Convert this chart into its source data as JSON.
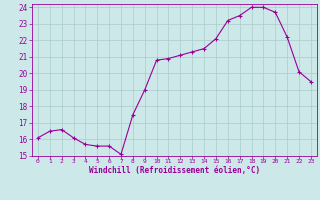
{
  "x": [
    0,
    1,
    2,
    3,
    4,
    5,
    6,
    7,
    8,
    9,
    10,
    11,
    12,
    13,
    14,
    15,
    16,
    17,
    18,
    19,
    20,
    21,
    22,
    23
  ],
  "y": [
    16.1,
    16.5,
    16.6,
    16.1,
    15.7,
    15.6,
    15.6,
    15.1,
    17.5,
    19.0,
    20.8,
    20.9,
    21.1,
    21.3,
    21.5,
    22.1,
    23.2,
    23.5,
    24.0,
    24.0,
    23.7,
    22.2,
    20.1,
    19.5
  ],
  "xlim": [
    -0.5,
    23.5
  ],
  "ylim": [
    15.0,
    24.2
  ],
  "yticks": [
    15,
    16,
    17,
    18,
    19,
    20,
    21,
    22,
    23,
    24
  ],
  "xticks": [
    0,
    1,
    2,
    3,
    4,
    5,
    6,
    7,
    8,
    9,
    10,
    11,
    12,
    13,
    14,
    15,
    16,
    17,
    18,
    19,
    20,
    21,
    22,
    23
  ],
  "line_color": "#990099",
  "marker": "+",
  "bg_color": "#cce8e8",
  "grid_color": "#aacccc",
  "xlabel": "Windchill (Refroidissement éolien,°C)",
  "tick_color": "#990099",
  "label_color": "#990099",
  "spine_color": "#990099"
}
